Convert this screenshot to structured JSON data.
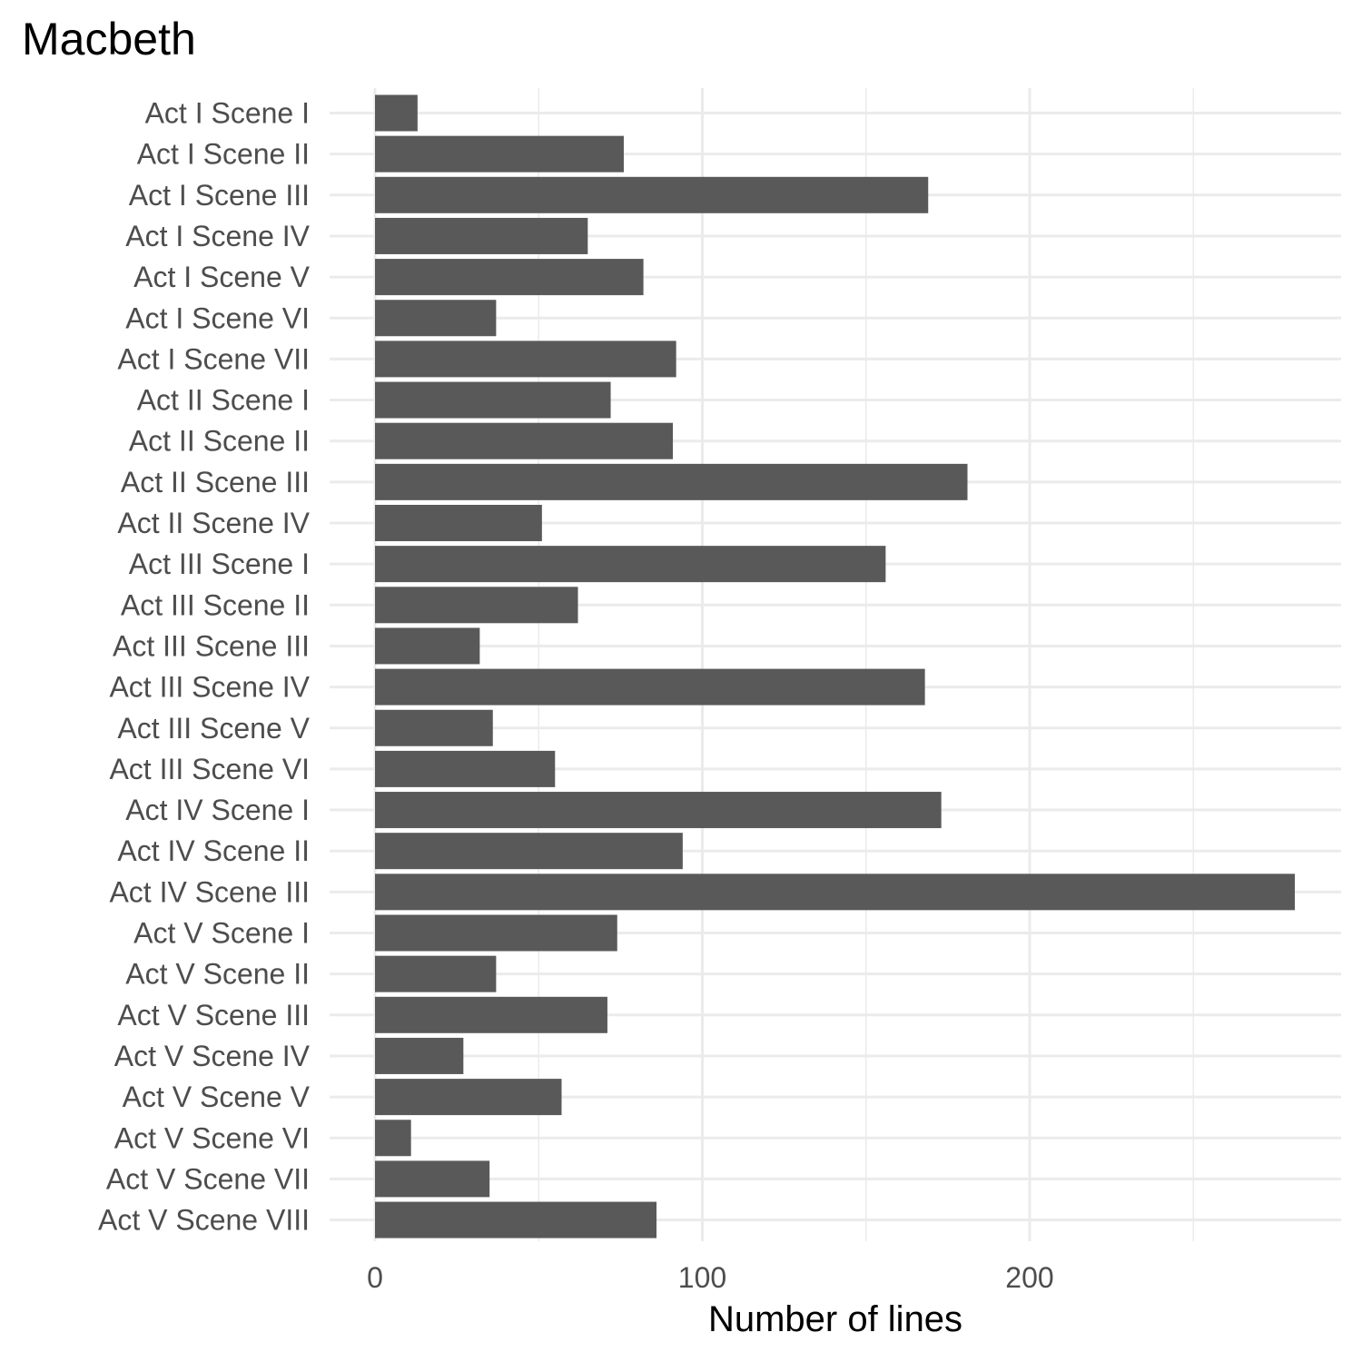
{
  "chart_data": {
    "type": "bar",
    "orientation": "horizontal",
    "title": "Macbeth",
    "xlabel": "Number of lines",
    "ylabel": "",
    "xlim": [
      0,
      295
    ],
    "xticks": [
      0,
      100,
      200
    ],
    "grid": true,
    "categories": [
      "Act I Scene I",
      "Act I Scene II",
      "Act I Scene III",
      "Act I Scene IV",
      "Act I Scene V",
      "Act I Scene VI",
      "Act I Scene VII",
      "Act II Scene I",
      "Act II Scene II",
      "Act II Scene III",
      "Act II Scene IV",
      "Act III Scene I",
      "Act III Scene II",
      "Act III Scene III",
      "Act III Scene IV",
      "Act III Scene V",
      "Act III Scene VI",
      "Act IV Scene I",
      "Act IV Scene II",
      "Act IV Scene III",
      "Act V Scene I",
      "Act V Scene II",
      "Act V Scene III",
      "Act V Scene IV",
      "Act V Scene V",
      "Act V Scene VI",
      "Act V Scene VII",
      "Act V Scene VIII"
    ],
    "values": [
      13,
      76,
      169,
      65,
      82,
      37,
      92,
      72,
      91,
      181,
      51,
      156,
      62,
      32,
      168,
      36,
      55,
      173,
      94,
      281,
      74,
      37,
      71,
      27,
      57,
      11,
      35,
      86
    ],
    "bar_color": "#595959",
    "grid_color": "#ebebeb",
    "text_color": "#4d4d4d"
  }
}
